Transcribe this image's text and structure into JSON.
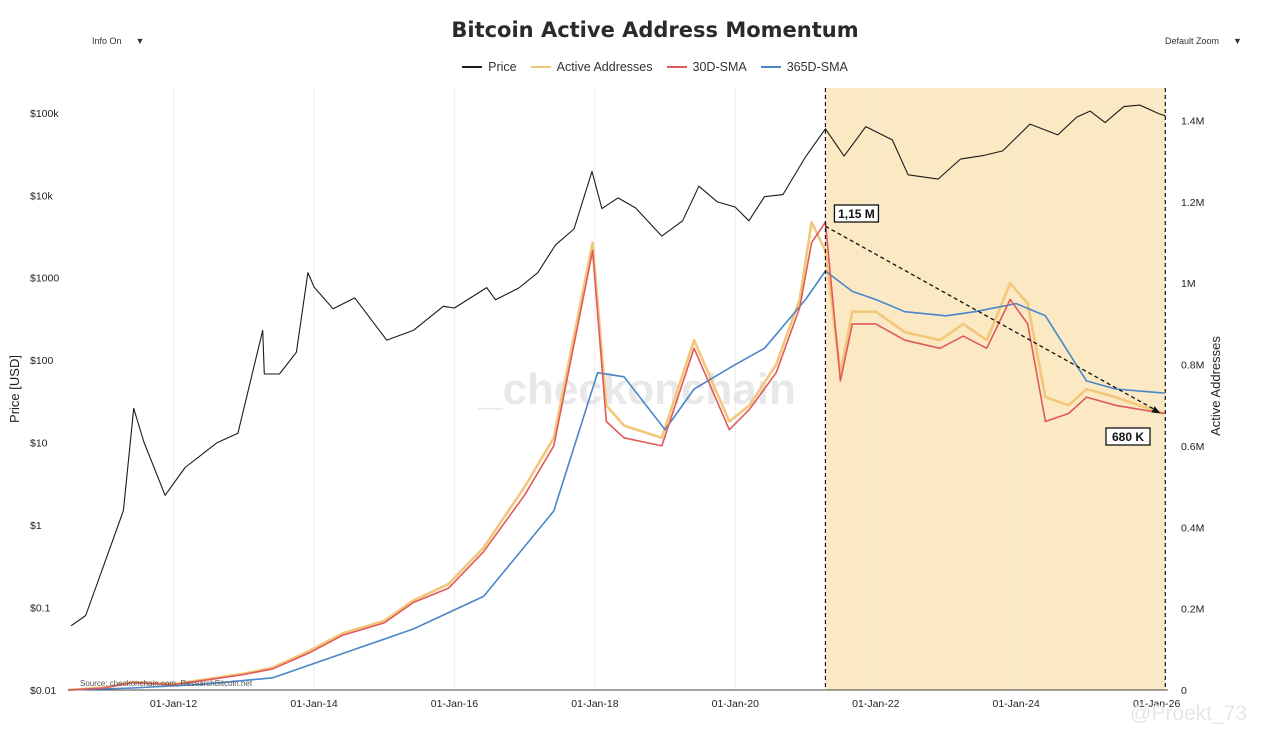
{
  "controls": {
    "info_toggle": "Info On",
    "zoom_select": "Default Zoom"
  },
  "watermark": "_checkonchain",
  "handle": "@Proekt_73",
  "source": "Source: checkonchain.com, ResearchBitcoin.net",
  "colors": {
    "price": "#1a1a1a",
    "active_addresses": "#f3c77a",
    "sma30": "#e0595b",
    "sma365": "#4a86c8",
    "highlight": "#fbe9c4",
    "watermark_accent": "#f0a531"
  },
  "chart_data": {
    "type": "line",
    "title": "Bitcoin Active Address Momentum",
    "legend": [
      "Price",
      "Active Addresses",
      "30D-SMA",
      "365D-SMA"
    ],
    "xlabel": "",
    "x_ticks": [
      "01-Jan-12",
      "01-Jan-14",
      "01-Jan-16",
      "01-Jan-18",
      "01-Jan-20",
      "01-Jan-22",
      "01-Jan-24",
      "01-Jan-26"
    ],
    "xlim": [
      "2010-07-01",
      "2026-03-01"
    ],
    "y_left": {
      "label": "Price [USD]",
      "scale": "log",
      "range": [
        0.01,
        200000
      ],
      "ticks": [
        "$0.01",
        "$0.1",
        "$1",
        "$10",
        "$100",
        "$1000",
        "$10k",
        "$100k"
      ],
      "tick_values": [
        0.01,
        0.1,
        1,
        10,
        100,
        1000,
        10000,
        100000
      ]
    },
    "y_right": {
      "label": "Active Addresses",
      "scale": "linear",
      "range": [
        0,
        1480000
      ],
      "ticks": [
        "0",
        "0.2M",
        "0.4M",
        "0.6M",
        "0.8M",
        "1M",
        "1.2M",
        "1.4M"
      ],
      "tick_values": [
        0,
        200000,
        400000,
        600000,
        800000,
        1000000,
        1200000,
        1400000
      ]
    },
    "highlight_range": [
      "2021-04-14",
      "2026-02-15"
    ],
    "series": [
      {
        "name": "Price",
        "axis": "left",
        "x": [
          "2010-07-17",
          "2010-10-01",
          "2011-02-01",
          "2011-04-15",
          "2011-06-08",
          "2011-08-01",
          "2011-11-18",
          "2012-03-01",
          "2012-08-15",
          "2012-12-01",
          "2013-04-09",
          "2013-04-17",
          "2013-07-05",
          "2013-10-01",
          "2013-11-30",
          "2014-01-01",
          "2014-04-10",
          "2014-08-01",
          "2015-01-14",
          "2015-06-01",
          "2015-11-04",
          "2016-01-01",
          "2016-06-17",
          "2016-08-02",
          "2016-12-01",
          "2017-03-10",
          "2017-06-10",
          "2017-09-14",
          "2017-12-17",
          "2018-02-06",
          "2018-05-01",
          "2018-08-01",
          "2018-12-15",
          "2019-04-02",
          "2019-06-26",
          "2019-09-30",
          "2019-12-31",
          "2020-03-12",
          "2020-06-01",
          "2020-09-05",
          "2020-12-31",
          "2021-04-14",
          "2021-07-20",
          "2021-11-10",
          "2022-03-28",
          "2022-06-18",
          "2022-11-21",
          "2023-03-17",
          "2023-07-13",
          "2023-10-23",
          "2024-03-13",
          "2024-08-05",
          "2024-11-12",
          "2025-01-20",
          "2025-04-08",
          "2025-07-14",
          "2025-10-06",
          "2026-01-15",
          "2026-02-15"
        ],
        "y": [
          0.06,
          0.08,
          0.5,
          1.5,
          26,
          10,
          2.3,
          5,
          10,
          13,
          230,
          68,
          68,
          125,
          1150,
          770,
          420,
          570,
          175,
          230,
          450,
          430,
          760,
          540,
          750,
          1150,
          2500,
          3900,
          19500,
          6900,
          9300,
          7000,
          3200,
          4900,
          12900,
          8300,
          7200,
          4900,
          9600,
          10200,
          29000,
          64000,
          29900,
          68000,
          47000,
          17700,
          15700,
          27500,
          30300,
          34500,
          73000,
          54000,
          89000,
          105000,
          76000,
          119000,
          124000,
          97000,
          92000
        ]
      },
      {
        "name": "Active Addresses",
        "axis": "right",
        "x": [
          "2010-07-01",
          "2011-01-01",
          "2011-06-01",
          "2012-01-01",
          "2012-06-01",
          "2013-01-01",
          "2013-06-01",
          "2013-12-01",
          "2014-06-01",
          "2015-01-01",
          "2015-06-01",
          "2015-12-01",
          "2016-06-01",
          "2017-01-01",
          "2017-06-01",
          "2017-12-20",
          "2018-03-01",
          "2018-06-01",
          "2018-12-15",
          "2019-06-01",
          "2019-12-01",
          "2020-03-15",
          "2020-08-01",
          "2020-12-01",
          "2021-02-01",
          "2021-04-14",
          "2021-07-01",
          "2021-09-01",
          "2022-01-01",
          "2022-06-01",
          "2022-12-01",
          "2023-04-01",
          "2023-08-01",
          "2023-12-01",
          "2024-03-01",
          "2024-06-01",
          "2024-10-01",
          "2025-01-01",
          "2025-06-01",
          "2025-10-01",
          "2026-02-10"
        ],
        "y": [
          0,
          6000,
          20000,
          15000,
          25000,
          40000,
          55000,
          95000,
          140000,
          170000,
          220000,
          260000,
          350000,
          500000,
          620000,
          1100000,
          700000,
          650000,
          620000,
          860000,
          660000,
          700000,
          800000,
          960000,
          1150000,
          1080000,
          780000,
          930000,
          930000,
          880000,
          860000,
          900000,
          860000,
          1000000,
          950000,
          720000,
          700000,
          740000,
          720000,
          700000,
          680000
        ]
      },
      {
        "name": "30D-SMA",
        "axis": "right",
        "x": [
          "2010-07-01",
          "2011-01-01",
          "2011-06-01",
          "2012-01-01",
          "2012-06-01",
          "2013-01-01",
          "2013-06-01",
          "2013-12-01",
          "2014-06-01",
          "2015-01-01",
          "2015-06-01",
          "2015-12-01",
          "2016-06-01",
          "2017-01-01",
          "2017-06-01",
          "2017-12-20",
          "2018-03-01",
          "2018-06-01",
          "2018-12-15",
          "2019-06-01",
          "2019-12-01",
          "2020-03-15",
          "2020-08-01",
          "2020-12-01",
          "2021-02-01",
          "2021-04-14",
          "2021-07-01",
          "2021-09-01",
          "2022-01-01",
          "2022-06-01",
          "2022-12-01",
          "2023-04-01",
          "2023-08-01",
          "2023-12-01",
          "2024-03-01",
          "2024-06-01",
          "2024-10-01",
          "2025-01-01",
          "2025-06-01",
          "2025-10-01",
          "2026-02-10"
        ],
        "y": [
          0,
          5000,
          18000,
          13000,
          23000,
          38000,
          52000,
          90000,
          135000,
          165000,
          215000,
          250000,
          340000,
          480000,
          600000,
          1080000,
          660000,
          620000,
          600000,
          840000,
          640000,
          690000,
          780000,
          940000,
          1100000,
          1150000,
          760000,
          900000,
          900000,
          860000,
          840000,
          870000,
          840000,
          960000,
          900000,
          660000,
          680000,
          720000,
          700000,
          690000,
          680000
        ]
      },
      {
        "name": "365D-SMA",
        "axis": "right",
        "x": [
          "2010-07-01",
          "2011-06-01",
          "2012-06-01",
          "2013-06-01",
          "2014-06-01",
          "2015-06-01",
          "2016-06-01",
          "2017-06-01",
          "2018-01-15",
          "2018-06-01",
          "2019-01-01",
          "2019-06-01",
          "2020-01-01",
          "2020-06-01",
          "2021-01-01",
          "2021-04-14",
          "2021-09-01",
          "2022-01-01",
          "2022-06-01",
          "2023-01-01",
          "2023-06-01",
          "2024-01-01",
          "2024-06-01",
          "2025-01-01",
          "2025-06-01",
          "2026-02-10"
        ],
        "y": [
          0,
          5000,
          14000,
          30000,
          90000,
          150000,
          230000,
          440000,
          780000,
          770000,
          640000,
          740000,
          800000,
          840000,
          960000,
          1030000,
          980000,
          960000,
          930000,
          920000,
          930000,
          950000,
          920000,
          760000,
          740000,
          730000
        ]
      }
    ],
    "annotations": [
      {
        "text": "1,15 M",
        "x": "2021-04-14",
        "y": 1150000
      },
      {
        "text": "680 K",
        "x": "2026-01-20",
        "y": 680000
      }
    ]
  }
}
